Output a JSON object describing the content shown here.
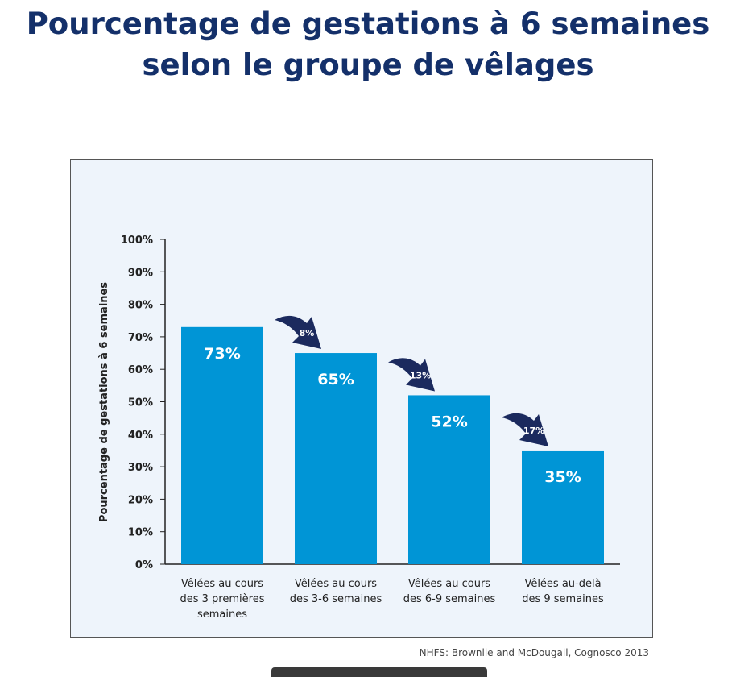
{
  "title_line1": "Pourcentage de gestations à 6 semaines",
  "title_line2": "selon le groupe de vêlages",
  "source": "NHFS: Brownlie and McDougall, Cognosco 2013",
  "chart_data": {
    "type": "bar",
    "ylabel": "Pourcentage de gestations à 6 semaines",
    "ylim": [
      0,
      100
    ],
    "yticks": [
      "0%",
      "10%",
      "20%",
      "30%",
      "40%",
      "50%",
      "60%",
      "70%",
      "80%",
      "90%",
      "100%"
    ],
    "categories": [
      [
        "Vêlées au cours",
        "des 3 premières",
        "semaines"
      ],
      [
        "Vêlées au cours",
        "des 3-6 semaines"
      ],
      [
        "Vêlées au cours",
        "des 6-9 semaines"
      ],
      [
        "Vêlées au-delà",
        "des 9 semaines"
      ]
    ],
    "values": [
      73,
      65,
      52,
      35
    ],
    "data_labels": [
      "73%",
      "65%",
      "52%",
      "35%"
    ],
    "drop_annotations": [
      "8%",
      "13%",
      "17%"
    ],
    "bar_color": "#0095d6",
    "arrow_color": "#1b2a5e",
    "grid": false
  }
}
